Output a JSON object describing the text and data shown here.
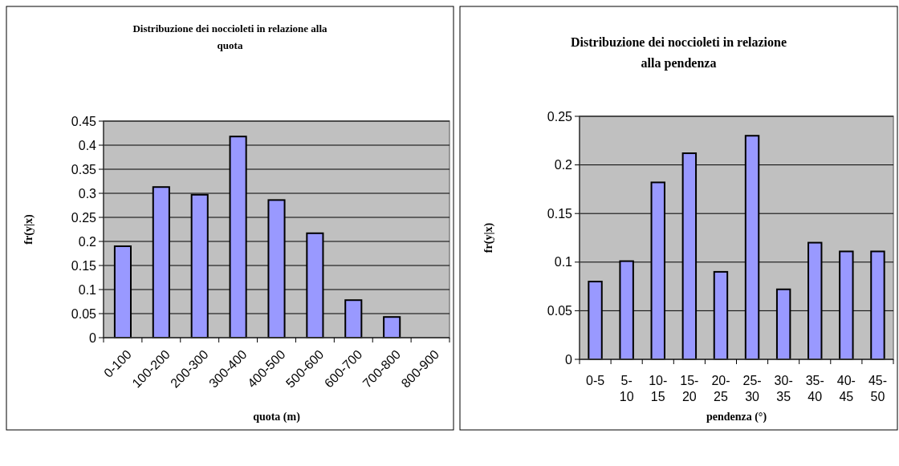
{
  "chart_data": [
    {
      "type": "bar",
      "title": "Distribuzione dei noccioleti in relazione alla quota",
      "xlabel": "quota (m)",
      "ylabel": "fr(y|x)",
      "categories": [
        "0-100",
        "100-200",
        "200-300",
        "300-400",
        "400-500",
        "500-600",
        "600-700",
        "700-800",
        "800-900"
      ],
      "values": [
        0.19,
        0.313,
        0.297,
        0.418,
        0.286,
        0.217,
        0.078,
        0.043,
        0
      ],
      "color": "#9999ff",
      "ylim": [
        0,
        0.45
      ],
      "yticks": [
        0,
        0.05,
        0.1,
        0.15,
        0.2,
        0.25,
        0.3,
        0.35,
        0.4,
        0.45
      ],
      "grid": "y"
    },
    {
      "type": "bar",
      "title": "Distribuzione dei noccioleti in relazione alla pendenza",
      "xlabel": "pendenza (°)",
      "ylabel": "fr(y|x)",
      "categories": [
        "0-5",
        "5-10",
        "10-15",
        "15-20",
        "20-25",
        "25-30",
        "30-35",
        "35-40",
        "40-45",
        "45-50"
      ],
      "values": [
        0.08,
        0.101,
        0.182,
        0.212,
        0.09,
        0.23,
        0.072,
        0.12,
        0.111,
        0.111
      ],
      "color": "#9999ff",
      "ylim": [
        0,
        0.25
      ],
      "yticks": [
        0,
        0.05,
        0.1,
        0.15,
        0.2,
        0.25
      ],
      "grid": "y"
    }
  ]
}
